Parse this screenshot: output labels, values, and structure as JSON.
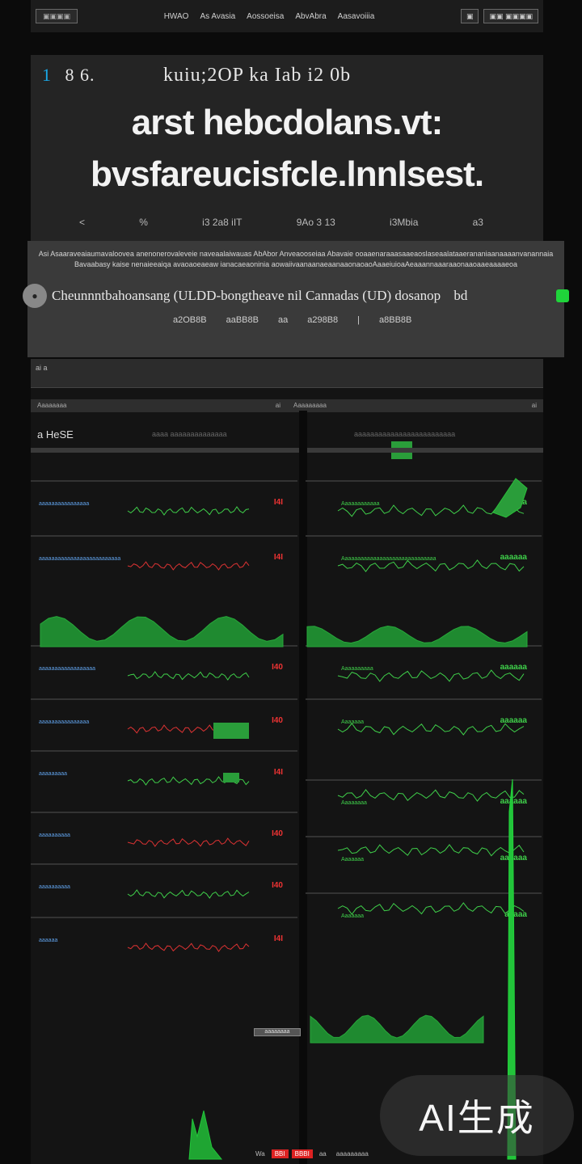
{
  "nav": {
    "logo": "▣▣▣▣",
    "links": [
      "HWAO",
      "As Avasia",
      "Aossoeisa",
      "AbvAbra",
      "Aasavoiiia"
    ],
    "right": [
      "▣",
      "▣▣ ▣▣▣▣"
    ]
  },
  "hero": {
    "num_a": "1",
    "num_b": "8 6.",
    "row_text": "kuiu;2OP   ka Iab   i2 0b",
    "title_line1": "arst hebcdolans.vt:",
    "title_line2": "bvsfareucisfcle.lnnlsest.",
    "meta": [
      "<",
      "%",
      "i3 2a8 iIT",
      "9Ao 3 13",
      "i3Mbia",
      "a3"
    ]
  },
  "desc": {
    "text": "Asi Asaaraveaiaumavaloovea anenonerovaleveie naveaalaiwauas AbAbor Anveaooseiaa Abavaie ooaaenaraaasaaeaoslaseaalataaerananiaanaaaanvanannaia Bavaabasy kaise nenaieeaiqa avaoaoeaeaw ianacaeaoninia aowaiivaanaanaeaanaaonaoaoAaaeiuioaAeaaannaaaraaonaaoaaeaaaaeoa",
    "chip_label": "Cheunnntbahoansang (ULDD-bongtheave nil Cannadas (UD) dosanop",
    "chip_tag": "bd",
    "stats": [
      "a2OB8B",
      "aaBB8B",
      "aa",
      "a298B8",
      "|",
      "a8BB8B"
    ]
  },
  "dash": {
    "head": "ai  a",
    "col_left": "Aaaaaaaa",
    "col_left_end": "ai",
    "col_right": "Aaaaaaaaa",
    "col_right_end": "ai",
    "panel_left_title": "a HeSE",
    "panel_left_sub": "aaaa  aaaaaaaaaaaaaa",
    "panel_right_sub": "aaaaaaaaaaaaaaaaaaaaaaaaa",
    "rows_left": [
      {
        "label": "aaaaaaaaaaaaaaaa",
        "value": "I4I"
      },
      {
        "label": "aaaaaaaaaaaaaaaaaaaaaaaaaa",
        "value": "I4I"
      },
      {
        "label": "aaaaaaaaaaaaaaaaaa",
        "value": "I40"
      },
      {
        "label": "aaaaaaaaaaaaaaaa",
        "value": "I40"
      },
      {
        "label": "aaaaaaaaa",
        "value": "I4I"
      },
      {
        "label": "aaaaaaaaaa",
        "value": "I40"
      },
      {
        "label": "aaaaaaaaaa",
        "value": "I40"
      },
      {
        "label": "aaaaaa",
        "value": "I4I"
      }
    ],
    "rows_right": [
      {
        "label": "Aaaaaaaaaaaa",
        "value": "aaaaa"
      },
      {
        "label": "Aaaaaaaaaaaaaaaaaaaaaaaaaaaaaa",
        "value": "aaaaaa"
      },
      {
        "label": "Aaaaaaaaaa",
        "value": "aaaaaa"
      },
      {
        "label": "Aaaaaaa",
        "value": "aaaaaa"
      },
      {
        "label": "Aaaaaaaa",
        "value": "aaaaaa"
      },
      {
        "label": "Aaaaaaa",
        "value": "aaaaaa"
      },
      {
        "label": "Aaaaaaa",
        "value": "aaaaa"
      }
    ],
    "btn_small": "aaaaaaaa",
    "footer": [
      "Wa",
      "BBI",
      "BBBI",
      "aa",
      "aaaaaaaaa"
    ]
  },
  "watermark": "AI生成",
  "colors": {
    "accent_green": "#22c43a",
    "accent_red": "#e03030",
    "accent_blue": "#3a7be0",
    "panel_bg": "#1f1f1f"
  }
}
